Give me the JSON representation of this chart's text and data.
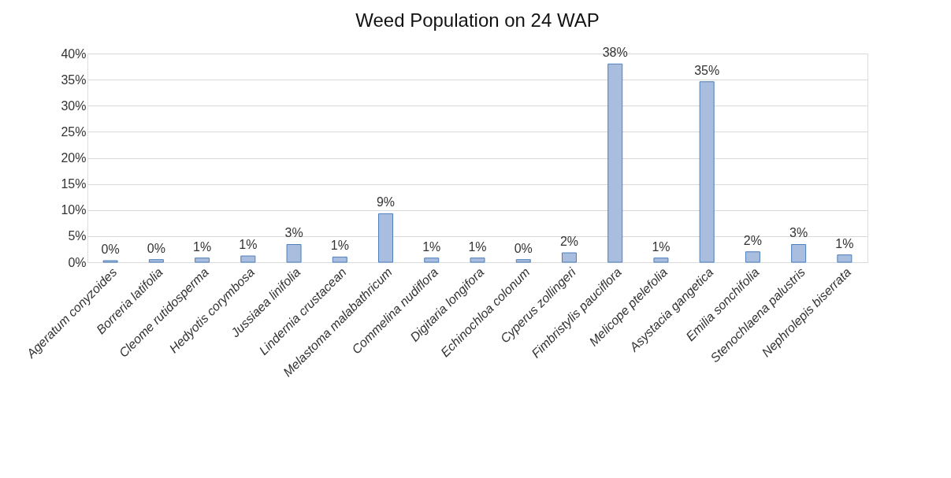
{
  "chart_data": {
    "type": "bar",
    "title": "Weed Population on 24 WAP",
    "categories": [
      "Ageratum conyzoides",
      "Borreria latifolia",
      "Cleome rutidosperma",
      "Hedyotis corymbosa",
      "Jussiaea linifolia",
      "Lindernia crustacean",
      "Melastoma malabathricum",
      "Commelina nudiflora",
      "Digitaria longifora",
      "Echinochloa colonum",
      "Cyperus zollingeri",
      "Fimbristylis pauciflora",
      "Melicope ptelefolia",
      "Asystacia gangetica",
      "Emilia sonchifolia",
      "Stenochlaena palustris",
      "Nephrolepis biserrata"
    ],
    "values": [
      0.3,
      0.5,
      0.8,
      1.2,
      3.4,
      1.0,
      9.3,
      0.8,
      0.8,
      0.5,
      1.8,
      38.0,
      0.8,
      34.6,
      2.0,
      3.4,
      1.4
    ],
    "value_labels": [
      "0%",
      "0%",
      "1%",
      "1%",
      "3%",
      "1%",
      "9%",
      "1%",
      "1%",
      "0%",
      "2%",
      "38%",
      "1%",
      "35%",
      "2%",
      "3%",
      "1%"
    ],
    "color": "#a9bddf",
    "ylim": [
      0,
      40
    ],
    "yticks": [
      {
        "value": 0,
        "label": "0%"
      },
      {
        "value": 5,
        "label": "5%"
      },
      {
        "value": 10,
        "label": "10%"
      },
      {
        "value": 15,
        "label": "15%"
      },
      {
        "value": 20,
        "label": "20%"
      },
      {
        "value": 25,
        "label": "25%"
      },
      {
        "value": 30,
        "label": "30%"
      },
      {
        "value": 35,
        "label": "35%"
      },
      {
        "value": 40,
        "label": "40%"
      }
    ],
    "grid": "y"
  }
}
